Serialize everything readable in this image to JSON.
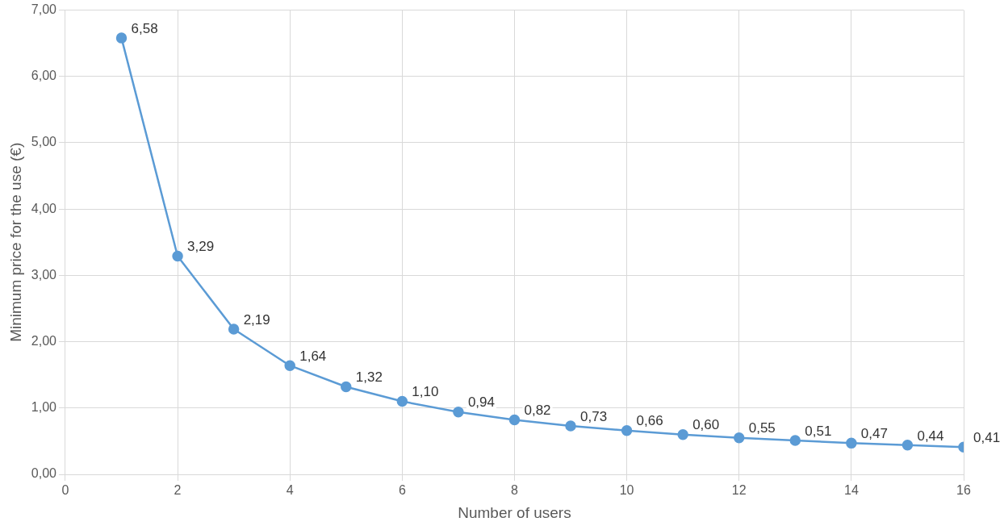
{
  "chart_data": {
    "type": "line",
    "xlabel": "Number of users",
    "ylabel": "Minimum price for the use (€)",
    "x": [
      1,
      2,
      3,
      4,
      5,
      6,
      7,
      8,
      9,
      10,
      11,
      12,
      13,
      14,
      15,
      16
    ],
    "series": [
      {
        "color": "#5b9bd5",
        "values": [
          6.58,
          3.29,
          2.19,
          1.64,
          1.32,
          1.1,
          0.94,
          0.82,
          0.73,
          0.66,
          0.6,
          0.55,
          0.51,
          0.47,
          0.44,
          0.41
        ],
        "value_labels": [
          "6,58",
          "3,29",
          "2,19",
          "1,64",
          "1,32",
          "1,10",
          "0,94",
          "0,82",
          "0,73",
          "0,66",
          "0,60",
          "0,55",
          "0,51",
          "0,47",
          "0,44",
          "0,41"
        ]
      }
    ],
    "xlim": [
      0,
      16
    ],
    "xticks": [
      0,
      2,
      4,
      6,
      8,
      10,
      12,
      14,
      16
    ],
    "ylim": [
      0,
      7
    ],
    "yticks": [
      {
        "value": 0,
        "label": "0,00"
      },
      {
        "value": 1,
        "label": "1,00"
      },
      {
        "value": 2,
        "label": "2,00"
      },
      {
        "value": 3,
        "label": "3,00"
      },
      {
        "value": 4,
        "label": "4,00"
      },
      {
        "value": 5,
        "label": "5,00"
      },
      {
        "value": 6,
        "label": "6,00"
      },
      {
        "value": 7,
        "label": "7,00"
      }
    ],
    "grid": true,
    "marker": "circle",
    "line_style": "solid",
    "legend": false
  }
}
